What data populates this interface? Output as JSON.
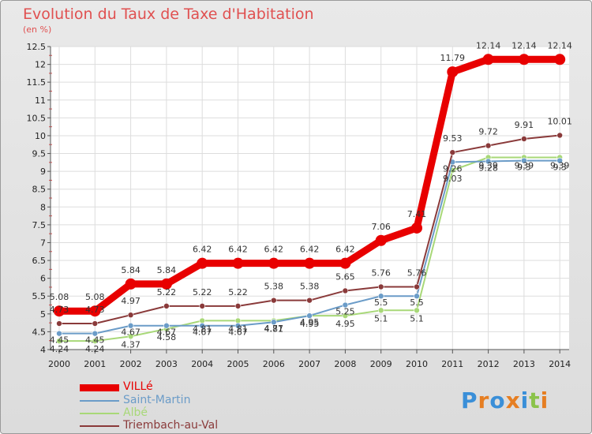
{
  "header": {
    "title": "Evolution du Taux de Taxe d'Habitation",
    "unit": "(en %)"
  },
  "logo": {
    "text": "Proxiti"
  },
  "colors": {
    "VILLé": "#e80000",
    "Saint-Martin": "#6b9cc8",
    "Albé": "#a8d878",
    "Triembach-au-Val": "#8a3a3a"
  },
  "chart_data": {
    "type": "line",
    "title": "Evolution du Taux de Taxe d'Habitation",
    "ylabel": "(en %)",
    "xlabel": "",
    "ylim": [
      4,
      12.5
    ],
    "yticks": [
      "4",
      "4.5",
      "5",
      "5.5",
      "6",
      "6.5",
      "7",
      "7.5",
      "8",
      "8.5",
      "9",
      "9.5",
      "10",
      "10.5",
      "11",
      "11.5",
      "12",
      "12.5"
    ],
    "x": [
      "2000",
      "2001",
      "2002",
      "2003",
      "2004",
      "2005",
      "2006",
      "2007",
      "2008",
      "2009",
      "2010",
      "2011",
      "2012",
      "2013",
      "2014"
    ],
    "grid": true,
    "legend_position": "bottom-left",
    "series": [
      {
        "name": "VILLé",
        "values": [
          5.08,
          5.08,
          5.84,
          5.84,
          6.42,
          6.42,
          6.42,
          6.42,
          6.42,
          7.06,
          7.41,
          11.79,
          12.14,
          12.14,
          12.14
        ],
        "labels": [
          "5.08",
          "5.08",
          "5.84",
          "5.84",
          "6.42",
          "6.42",
          "6.42",
          "6.42",
          "6.42",
          "7.06",
          "7.41",
          "11.79",
          "12.14",
          "12.14",
          "12.14"
        ]
      },
      {
        "name": "Saint-Martin",
        "values": [
          4.45,
          4.45,
          4.67,
          4.67,
          4.67,
          4.67,
          4.77,
          4.95,
          5.25,
          5.5,
          5.5,
          9.26,
          9.28,
          9.3,
          9.3
        ],
        "labels": [
          "4.45",
          "4.45",
          "4.67",
          "4.67",
          "4.67",
          "4.67",
          "4.77",
          "4.95",
          "5.25",
          "5.5",
          "5.5",
          "9.26",
          "9.28",
          "9.3",
          "9.3"
        ]
      },
      {
        "name": "Albé",
        "values": [
          4.24,
          4.24,
          4.37,
          4.58,
          4.81,
          4.81,
          4.81,
          4.95,
          4.95,
          5.1,
          5.1,
          9.03,
          9.39,
          9.39,
          9.39
        ],
        "labels": [
          "4.24",
          "4.24",
          "4.37",
          "4.58",
          "4.81",
          "4.81",
          "4.81",
          "4.95",
          "4.95",
          "5.1",
          "5.1",
          "9.03",
          "9.39",
          "9.39",
          "9.39"
        ]
      },
      {
        "name": "Triembach-au-Val",
        "values": [
          4.73,
          4.73,
          4.97,
          5.22,
          5.22,
          5.22,
          5.38,
          5.38,
          5.65,
          5.76,
          5.76,
          9.53,
          9.72,
          9.91,
          10.01
        ],
        "labels": [
          "4.73",
          "4.73",
          "4.97",
          "5.22",
          "5.22",
          "5.22",
          "5.38",
          "5.38",
          "5.65",
          "5.76",
          "5.76",
          "9.53",
          "9.72",
          "9.91",
          "10.01"
        ]
      }
    ]
  }
}
